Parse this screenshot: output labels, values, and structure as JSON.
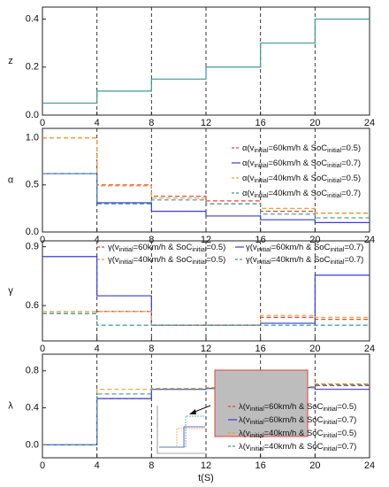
{
  "chart_data": [
    {
      "type": "line",
      "drawstyle": "steps-post",
      "ylabel": "z",
      "xlim": [
        0,
        24
      ],
      "xticks": [
        0,
        4,
        8,
        12,
        16,
        20,
        24
      ],
      "ylim": [
        0,
        0.45
      ],
      "yticks": [
        {
          "value": 0,
          "label": "0.0"
        },
        0.2,
        0.4
      ],
      "vgrid_dashed": true,
      "series": [
        {
          "color": "#3a9a9a",
          "dashed": false,
          "x": [
            0,
            4,
            8,
            12,
            16,
            20
          ],
          "values": [
            0.05,
            0.1,
            0.15,
            0.2,
            0.3,
            0.4
          ]
        }
      ]
    },
    {
      "type": "line",
      "drawstyle": "steps-post",
      "ylabel": "α",
      "xlim": [
        0,
        24
      ],
      "xticks": [
        0,
        4,
        8,
        12,
        16,
        20,
        24
      ],
      "ylim": [
        0,
        1.1
      ],
      "yticks": [
        {
          "value": 0,
          "label": "0.0"
        },
        0.5,
        {
          "value": 1,
          "label": "1.0"
        }
      ],
      "vgrid_dashed": true,
      "legend": "right",
      "series": [
        {
          "name": "α(vinitial=60km/h & SoCinitial=0.5)",
          "color": "#e8403a",
          "dashed": true,
          "x": [
            0,
            4,
            8,
            12,
            16,
            20
          ],
          "values": [
            1.0,
            0.5,
            0.38,
            0.33,
            0.22,
            0.2
          ]
        },
        {
          "name": "α(vinitial=60km/h & SoCinitial=0.7)",
          "color": "#3a3ae0",
          "dashed": false,
          "x": [
            0,
            4,
            8,
            12,
            16,
            20
          ],
          "values": [
            0.62,
            0.31,
            0.22,
            0.17,
            0.13,
            0.1
          ]
        },
        {
          "name": "α(vinitial=40km/h & SoCinitial=0.5)",
          "color": "#f0a030",
          "dashed": true,
          "x": [
            0,
            4,
            8,
            12,
            16,
            20
          ],
          "values": [
            1.0,
            0.49,
            0.36,
            0.3,
            0.25,
            0.2
          ]
        },
        {
          "name": "α(vinitial=40km/h & SoCinitial=0.7)",
          "color": "#3a9a9a",
          "dashed": true,
          "x": [
            0,
            4,
            8,
            12,
            16,
            20
          ],
          "values": [
            0.62,
            0.3,
            0.34,
            0.3,
            0.19,
            0.15
          ]
        }
      ]
    },
    {
      "type": "line",
      "drawstyle": "steps-post",
      "ylabel": "γ",
      "xlim": [
        0,
        24
      ],
      "xticks": [
        0,
        4,
        8,
        12,
        16,
        20,
        24
      ],
      "ylim": [
        0.42,
        0.93
      ],
      "yticks": [
        0.6,
        0.9
      ],
      "vgrid_dashed": true,
      "legend": "top",
      "series": [
        {
          "name": "γ(vinitial=60km/h & SoCinitial=0.5)",
          "color": "#e8403a",
          "dashed": true,
          "x": [
            0,
            4,
            8,
            12,
            16,
            20
          ],
          "values": [
            0.56,
            0.57,
            0.5,
            0.5,
            0.54,
            0.53
          ]
        },
        {
          "name": "γ(vinitial=60km/h & SoCinitial=0.7)",
          "color": "#3a3ae0",
          "dashed": false,
          "x": [
            0,
            4,
            8,
            12,
            16,
            20
          ],
          "values": [
            0.85,
            0.65,
            0.5,
            0.5,
            0.51,
            0.755
          ]
        },
        {
          "name": "γ(vinitial=40km/h & SoCinitial=0.5)",
          "color": "#f0a030",
          "dashed": true,
          "x": [
            0,
            4,
            8,
            12,
            16,
            20
          ],
          "values": [
            0.57,
            0.57,
            0.5,
            0.5,
            0.55,
            0.54
          ]
        },
        {
          "name": "γ(vinitial=40km/h & SoCinitial=0.7)",
          "color": "#3a9a9a",
          "dashed": true,
          "x": [
            0,
            4,
            8,
            12,
            16,
            20
          ],
          "values": [
            0.56,
            0.5,
            0.5,
            0.5,
            0.5,
            0.5
          ]
        }
      ]
    },
    {
      "type": "line",
      "drawstyle": "steps-post",
      "ylabel": "λ",
      "xlabel": "t(S)",
      "xlim": [
        0,
        24
      ],
      "xticks": [
        0,
        4,
        8,
        12,
        16,
        20,
        24
      ],
      "ylim": [
        -0.14,
        0.98
      ],
      "yticks": [
        {
          "value": 0,
          "label": "0.0"
        },
        0.4,
        0.8
      ],
      "vgrid_dashed": true,
      "legend": "center",
      "series": [
        {
          "name": "λ(vinitial=60km/h & SoCinitial=0.5)",
          "color": "#e8403a",
          "dashed": true,
          "x": [
            0,
            4,
            8,
            12,
            16,
            20
          ],
          "values": [
            0,
            0.5,
            0.6,
            0.61,
            0.62,
            0.64
          ]
        },
        {
          "name": "λ(vinitial=60km/h & SoCinitial=0.7)",
          "color": "#3a3ae0",
          "dashed": false,
          "x": [
            0,
            4,
            8,
            12,
            16,
            20
          ],
          "values": [
            0,
            0.5,
            0.6,
            0.61,
            0.62,
            0.6
          ]
        },
        {
          "name": "λ(vinitial=40km/h & SoCinitial=0.5)",
          "color": "#f0a030",
          "dashed": true,
          "x": [
            0,
            4,
            8,
            12,
            16,
            20
          ],
          "values": [
            0,
            0.6,
            0.61,
            0.62,
            0.63,
            0.66
          ]
        },
        {
          "name": "λ(vinitial=40km/h & SoCinitial=0.7)",
          "color": "#3a9a9a",
          "dashed": true,
          "x": [
            0,
            4,
            8,
            12,
            16,
            20
          ],
          "values": [
            0,
            0.55,
            0.6,
            0.61,
            0.62,
            0.65
          ]
        }
      ]
    }
  ]
}
